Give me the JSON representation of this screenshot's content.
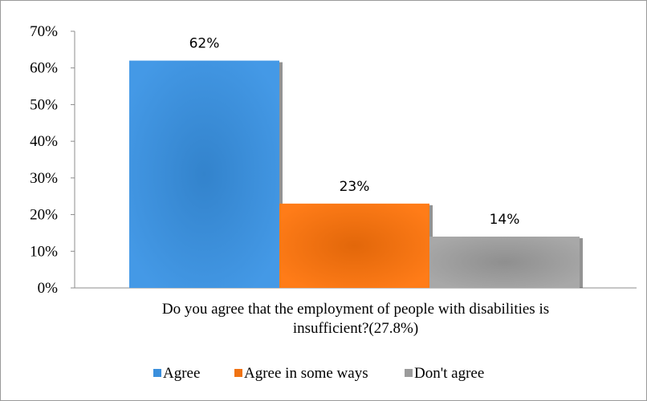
{
  "chart_data": {
    "type": "bar",
    "title": "",
    "xlabel": "Do you agree that the employment of people with disabilities is insufficient?(27.8%)",
    "xlabel_lines": [
      "Do you agree that the employment of people with disabilities is",
      "insufficient?(27.8%)"
    ],
    "ylabel": "",
    "ylim": [
      0,
      70
    ],
    "yticks": [
      "0%",
      "10%",
      "20%",
      "30%",
      "40%",
      "50%",
      "60%",
      "70%"
    ],
    "grid": false,
    "legend_position": "bottom",
    "series": [
      {
        "name": "Agree",
        "values": [
          62
        ],
        "label": "62%",
        "color": "#3b8fdc"
      },
      {
        "name": "Agree in some ways",
        "values": [
          23
        ],
        "label": "23%",
        "color": "#f07313"
      },
      {
        "name": "Don't agree",
        "values": [
          14
        ],
        "label": "14%",
        "color": "#9b9b9b"
      }
    ]
  }
}
